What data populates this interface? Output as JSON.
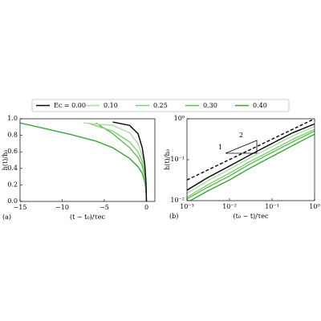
{
  "chart_data": [
    {
      "type": "line",
      "panel_label": "(a)",
      "x_label": "(t − t₀)/τec",
      "y_label": "h(t)/h₀",
      "xlim": [
        -15,
        1
      ],
      "ylim": [
        0,
        1
      ],
      "xticks": [
        {
          "value": -15,
          "label": "−15"
        },
        {
          "value": -10,
          "label": "−10"
        },
        {
          "value": -5,
          "label": "−5"
        },
        0
      ],
      "yticks": [
        {
          "value": 0,
          "label": "0.0"
        },
        0.2,
        0.4,
        0.6,
        0.8,
        {
          "value": 1,
          "label": "1.0"
        }
      ],
      "series": [
        {
          "name": "Ec = 0.00",
          "color": "#000000",
          "x": [
            -4,
            -2,
            -1,
            -0.5,
            -0.2,
            -0.05,
            0
          ],
          "values": [
            0.96,
            0.92,
            0.82,
            0.65,
            0.45,
            0.22,
            0
          ]
        },
        {
          "name": "0.10",
          "color": "#a8e0a0",
          "x": [
            -7.5,
            -4,
            -2,
            -1,
            -0.5,
            -0.2,
            -0.05,
            0
          ],
          "values": [
            0.95,
            0.92,
            0.83,
            0.7,
            0.55,
            0.38,
            0.2,
            0
          ]
        },
        {
          "name": "0.25",
          "color": "#7fcf74",
          "x": [
            -7,
            -4,
            -2,
            -1,
            -0.5,
            -0.2,
            -0.05,
            0
          ],
          "values": [
            0.95,
            0.85,
            0.72,
            0.6,
            0.48,
            0.33,
            0.17,
            0
          ]
        },
        {
          "name": "0.30",
          "color": "#5bbd52",
          "x": [
            -6,
            -4,
            -2,
            -1,
            -0.5,
            -0.2,
            -0.05,
            0
          ],
          "values": [
            0.95,
            0.82,
            0.65,
            0.53,
            0.43,
            0.3,
            0.15,
            0
          ]
        },
        {
          "name": "0.40",
          "color": "#3aa339",
          "x": [
            -15,
            -12,
            -9,
            -6,
            -4,
            -2,
            -1,
            -0.5,
            -0.2,
            -0.05,
            0
          ],
          "values": [
            0.95,
            0.88,
            0.81,
            0.73,
            0.65,
            0.52,
            0.42,
            0.34,
            0.24,
            0.13,
            0
          ]
        }
      ]
    },
    {
      "type": "line",
      "panel_label": "(b)",
      "x_label": "(t₀ − t)/τec",
      "y_label": "h(t)/h₀",
      "xscale": "log",
      "yscale": "log",
      "xlim": [
        0.001,
        1
      ],
      "ylim": [
        0.01,
        1
      ],
      "xticks": [
        {
          "value": 0.001,
          "label": "10⁻³"
        },
        {
          "value": 0.01,
          "label": "10⁻²"
        },
        {
          "value": 0.1,
          "label": "10⁻¹"
        },
        {
          "value": 1,
          "label": "10⁰"
        }
      ],
      "yticks": [
        {
          "value": 0.01,
          "label": "10⁻²"
        },
        {
          "value": 0.1,
          "label": "10⁻¹"
        },
        {
          "value": 1,
          "label": "10⁰"
        }
      ],
      "x": [
        0.001,
        0.003,
        0.01,
        0.03,
        0.1,
        0.3,
        1
      ],
      "series": [
        {
          "color": "#000000",
          "values": [
            0.018,
            0.036,
            0.07,
            0.13,
            0.25,
            0.45,
            0.75
          ]
        },
        {
          "color": "#a8e0a0",
          "values": [
            0.015,
            0.03,
            0.058,
            0.11,
            0.21,
            0.38,
            0.65
          ]
        },
        {
          "color": "#7fcf74",
          "values": [
            0.012,
            0.024,
            0.047,
            0.09,
            0.17,
            0.31,
            0.55
          ]
        },
        {
          "color": "#5bbd52",
          "values": [
            0.011,
            0.021,
            0.04,
            0.078,
            0.15,
            0.27,
            0.5
          ]
        },
        {
          "color": "#3aa339",
          "values": [
            0.009,
            0.017,
            0.032,
            0.062,
            0.12,
            0.22,
            0.42
          ]
        }
      ],
      "reference_line": {
        "x": [
          0.001,
          1
        ],
        "values": [
          0.032,
          1
        ],
        "color": "#000000"
      },
      "annotations": [
        "1",
        "2"
      ]
    }
  ]
}
